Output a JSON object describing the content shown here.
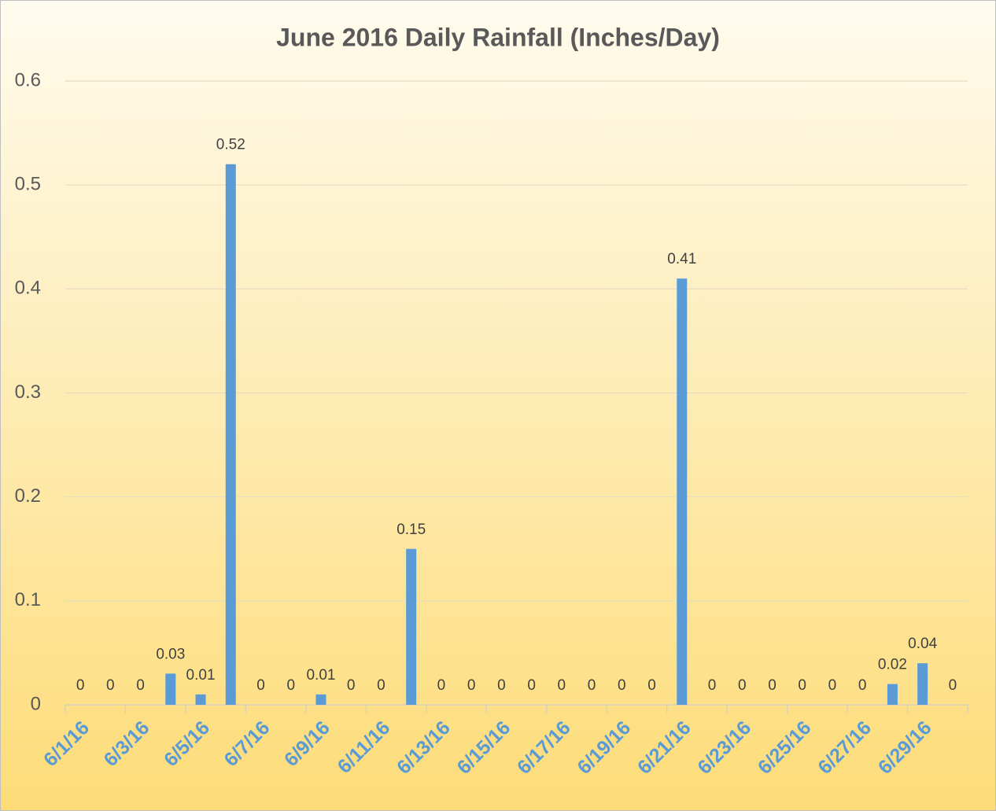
{
  "chart_data": {
    "type": "bar",
    "title": "June 2016 Daily Rainfall (Inches/Day)",
    "categories": [
      "6/1/16",
      null,
      "6/3/16",
      null,
      "6/5/16",
      null,
      "6/7/16",
      null,
      "6/9/16",
      null,
      "6/11/16",
      null,
      "6/13/16",
      null,
      "6/15/16",
      null,
      "6/17/16",
      null,
      "6/19/16",
      null,
      "6/21/16",
      null,
      "6/23/16",
      null,
      "6/25/16",
      null,
      "6/27/16",
      null,
      "6/29/16",
      null
    ],
    "values": [
      0,
      0,
      0,
      0.03,
      0.01,
      0.52,
      0,
      0,
      0.01,
      0,
      0,
      0.15,
      0,
      0,
      0,
      0,
      0,
      0,
      0,
      0,
      0.41,
      0,
      0,
      0,
      0,
      0,
      0,
      0.02,
      0.04,
      0
    ],
    "color": "#5b9bd5",
    "ylim": [
      0,
      0.6
    ],
    "yticks": [
      0,
      0.1,
      0.2,
      0.3,
      0.4,
      0.5,
      0.6
    ],
    "grid": true
  }
}
